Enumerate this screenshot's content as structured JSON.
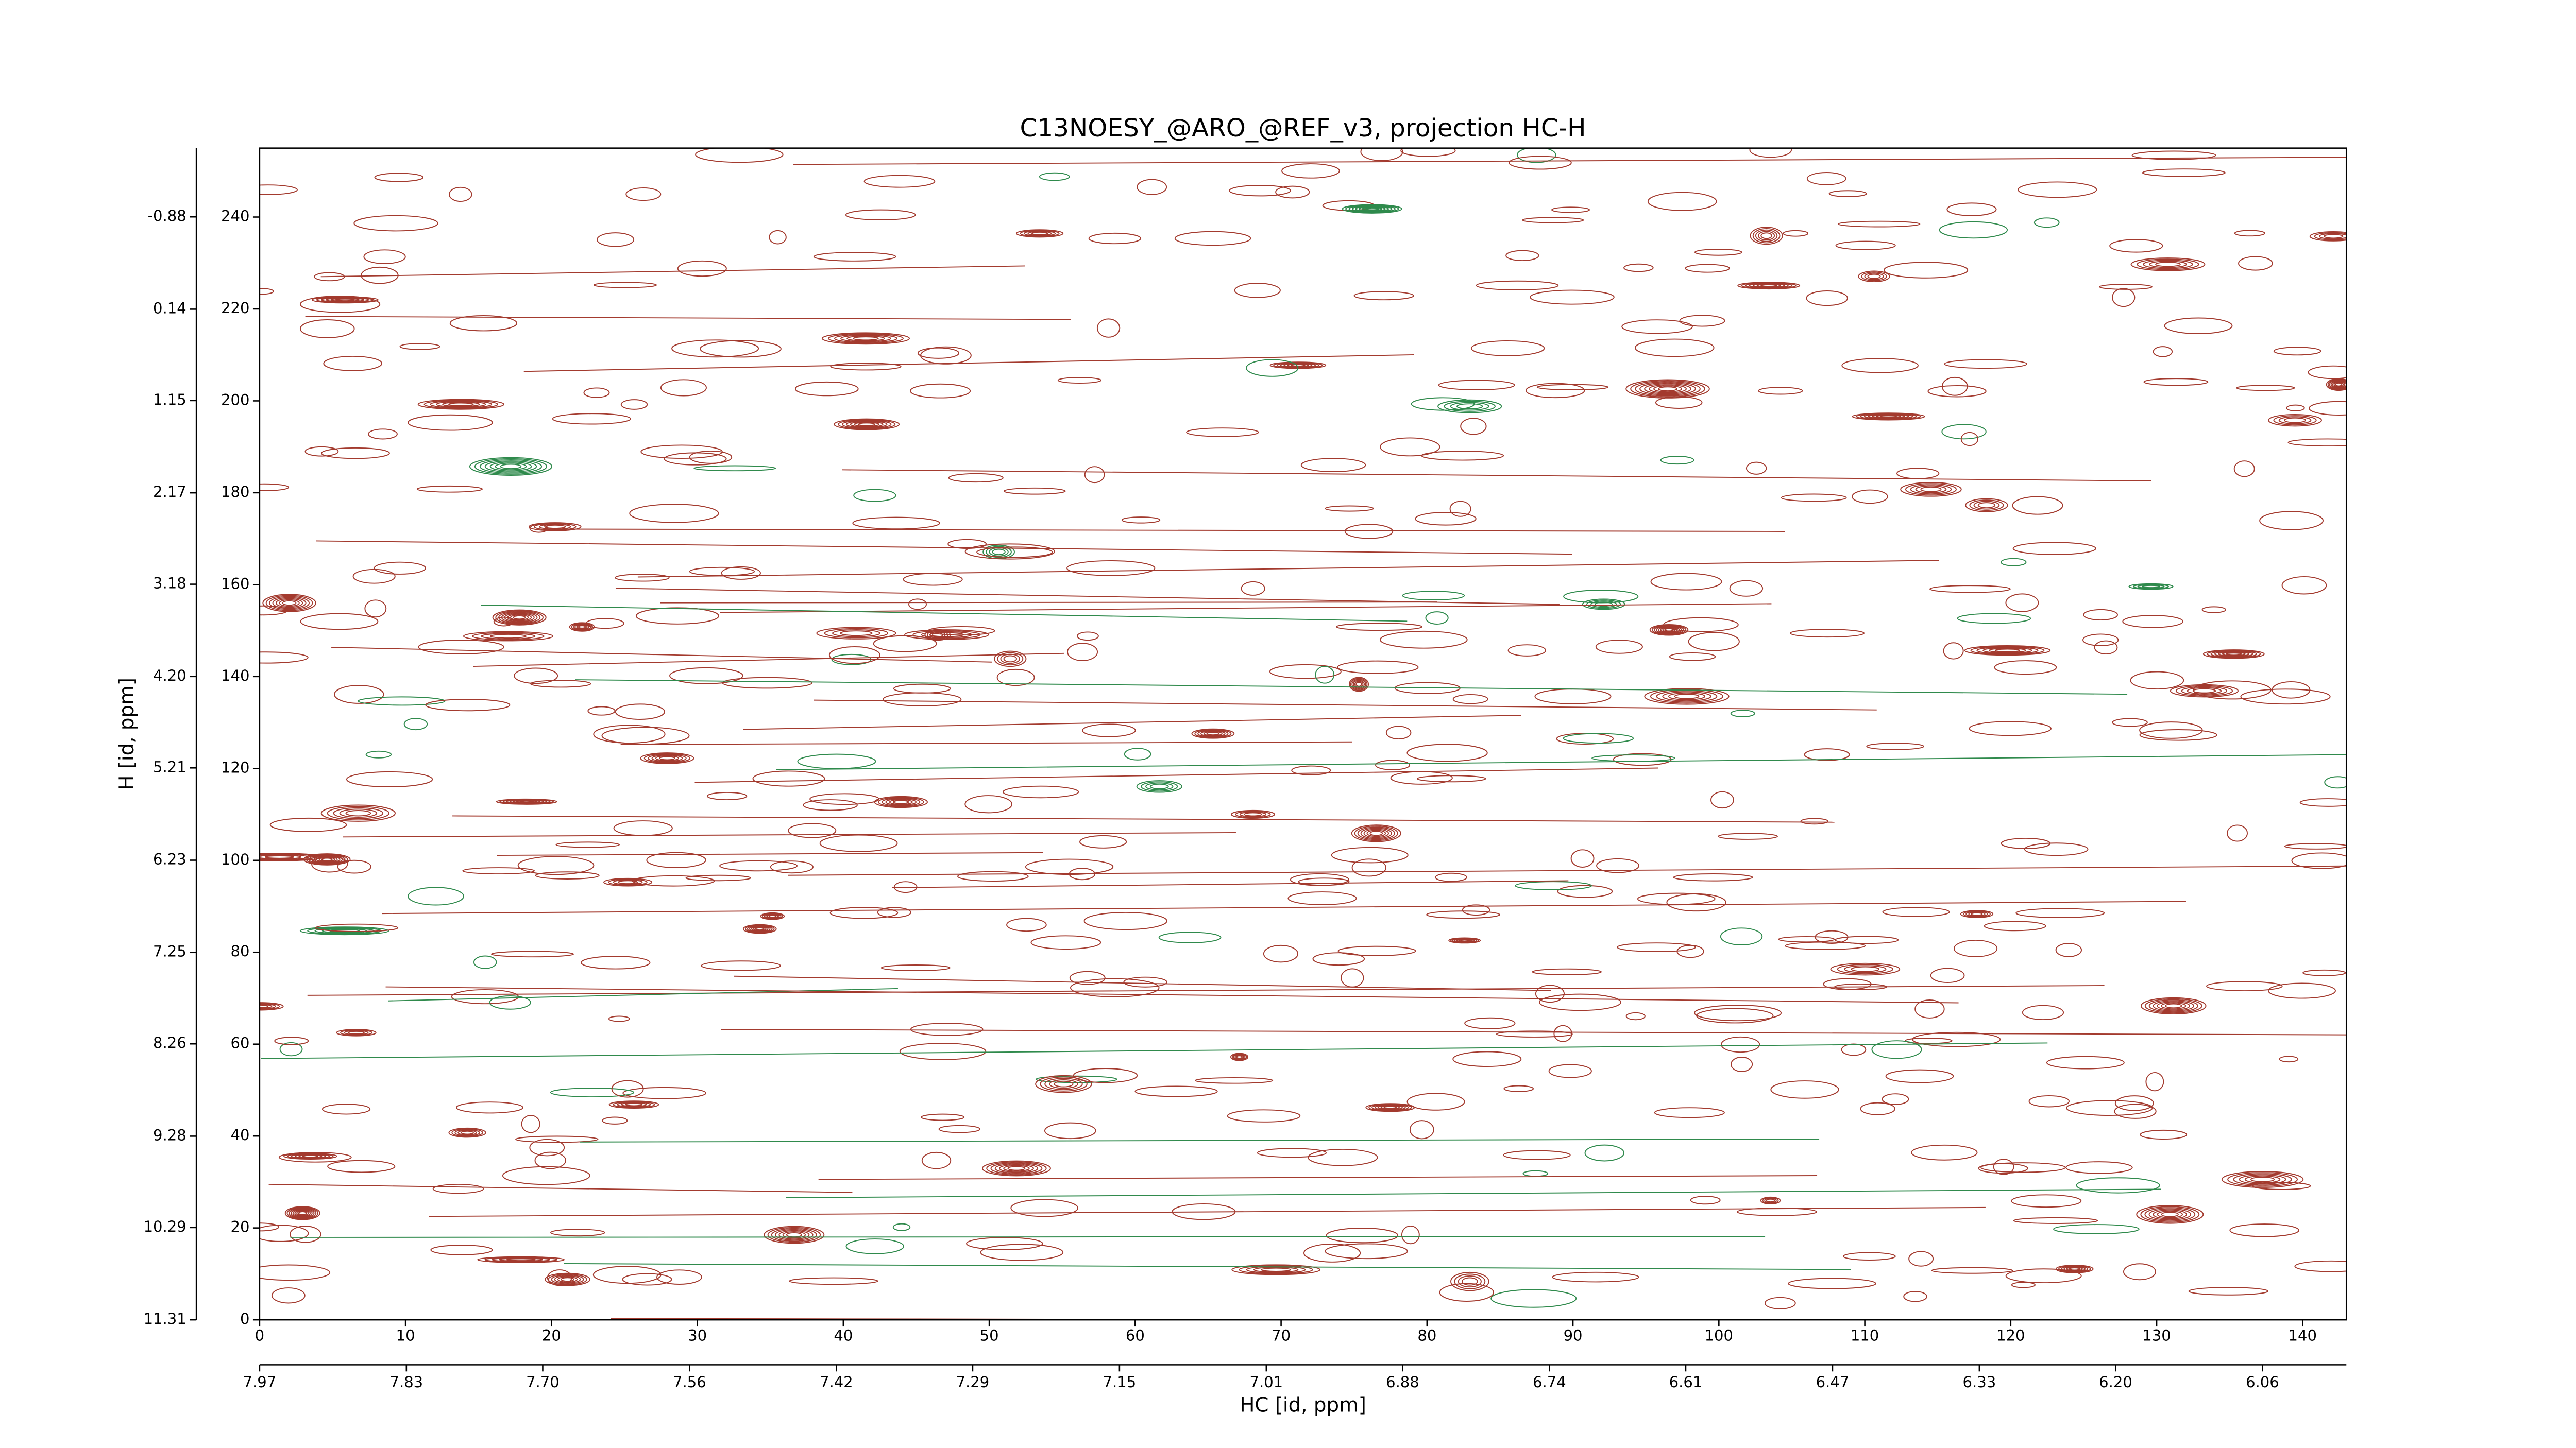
{
  "chart_data": {
    "type": "contour",
    "title": "C13NOESY_@ARO_@REF_v3, projection HC-H",
    "x_label": "HC [id, ppm]",
    "y_label": "H [id, ppm]",
    "xlim": [
      0,
      143
    ],
    "xticks": [
      0,
      10,
      20,
      30,
      40,
      50,
      60,
      70,
      80,
      90,
      100,
      110,
      120,
      130,
      140
    ],
    "x2lim": [
      7.97,
      5.98
    ],
    "x2ticks": [
      7.97,
      7.83,
      {
        "value": 7.7,
        "label": "7.70"
      },
      7.56,
      7.42,
      7.29,
      7.15,
      7.01,
      6.88,
      6.74,
      6.61,
      6.47,
      6.33,
      {
        "value": 6.2,
        "label": "6.20"
      },
      6.06
    ],
    "ylim": [
      0,
      255
    ],
    "yticks": [
      0,
      20,
      40,
      60,
      80,
      100,
      120,
      140,
      160,
      180,
      200,
      220,
      240
    ],
    "y2lim": [
      11.31,
      -1.64
    ],
    "y2ticks": [
      11.31,
      10.29,
      9.28,
      8.26,
      7.25,
      6.23,
      5.21,
      {
        "value": 4.2,
        "label": "4.20"
      },
      3.18,
      2.17,
      1.15,
      0.14,
      -0.88
    ],
    "contour_colors": [
      "#a33a2e",
      "#2f8a4c"
    ]
  }
}
